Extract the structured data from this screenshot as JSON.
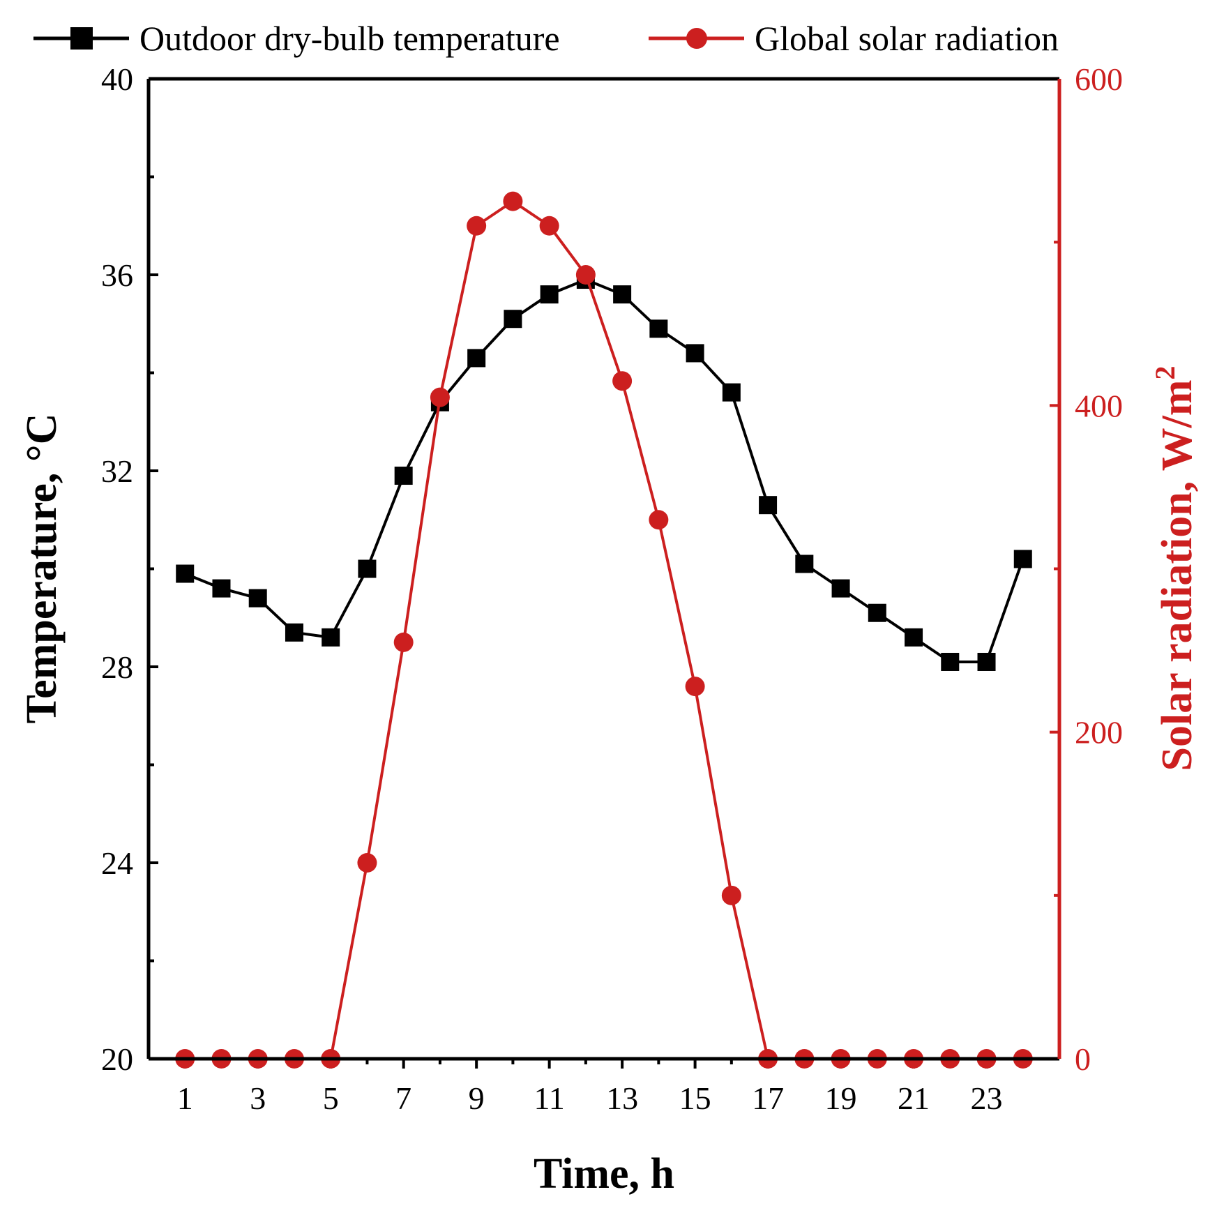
{
  "chart_data": {
    "type": "line",
    "xlabel": "Time, h",
    "ylabel": "Temperature, °C",
    "ylabel_parts": {
      "main": "Temperature, ",
      "unit": "°C"
    },
    "y2label": "Solar radiation, W/m2",
    "y2label_parts": {
      "main": "Solar radiation, W/m",
      "sup": "2"
    },
    "x": [
      1,
      2,
      3,
      4,
      5,
      6,
      7,
      8,
      9,
      10,
      11,
      12,
      13,
      14,
      15,
      16,
      17,
      18,
      19,
      20,
      21,
      22,
      23,
      24
    ],
    "xticks": [
      1,
      3,
      5,
      7,
      9,
      11,
      13,
      15,
      17,
      19,
      21,
      23
    ],
    "xlim": [
      0,
      25
    ],
    "ylim": [
      20,
      40
    ],
    "yticks": [
      20,
      24,
      28,
      32,
      36,
      40
    ],
    "y2lim": [
      0,
      600
    ],
    "y2ticks": [
      0,
      200,
      400,
      600
    ],
    "series": [
      {
        "name": "Outdoor dry-bulb temperature",
        "axis": "left",
        "marker": "square",
        "color": "#000000",
        "values": [
          29.9,
          29.6,
          29.4,
          28.7,
          28.6,
          30.0,
          31.9,
          33.4,
          34.3,
          35.1,
          35.6,
          35.9,
          35.6,
          34.9,
          34.4,
          33.6,
          31.3,
          30.1,
          29.6,
          29.1,
          28.6,
          28.1,
          28.1,
          30.2
        ]
      },
      {
        "name": "Global solar radiation",
        "axis": "right",
        "marker": "circle",
        "color": "#cc1f1f",
        "values": [
          0,
          0,
          0,
          0,
          0,
          120,
          255,
          405,
          510,
          525,
          510,
          480,
          415,
          330,
          228,
          100,
          0,
          0,
          0,
          0,
          0,
          0,
          0,
          0
        ]
      }
    ],
    "legend_position": "top"
  }
}
